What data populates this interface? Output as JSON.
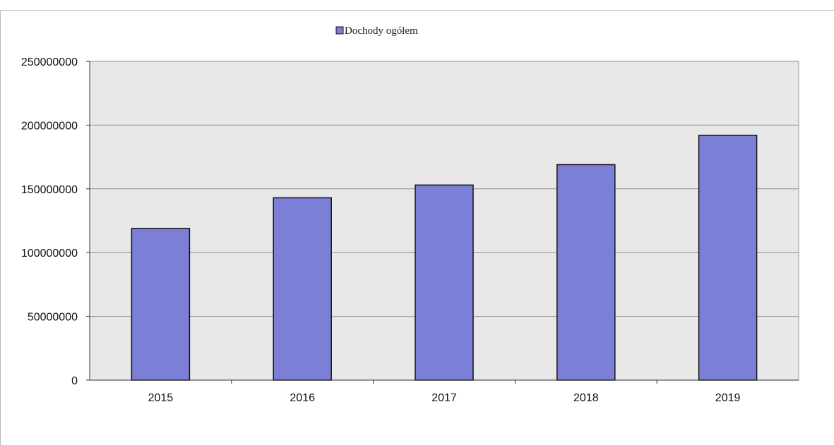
{
  "chart_data": {
    "type": "bar",
    "categories": [
      "2015",
      "2016",
      "2017",
      "2018",
      "2019"
    ],
    "series": [
      {
        "name": "Dochody ogółem",
        "values": [
          119000000,
          143000000,
          153000000,
          169000000,
          192000000
        ],
        "color": "#7b7fd6"
      }
    ],
    "ylim": [
      0,
      250000000
    ],
    "yticks": [
      "0",
      "50000000",
      "100000000",
      "150000000",
      "200000000",
      "250000000"
    ],
    "ytick_values": [
      0,
      50000000,
      100000000,
      150000000,
      200000000,
      250000000
    ],
    "grid": true,
    "legend": "top-center",
    "plot_background": "#e8e8e8",
    "bar_border": "#111111"
  }
}
